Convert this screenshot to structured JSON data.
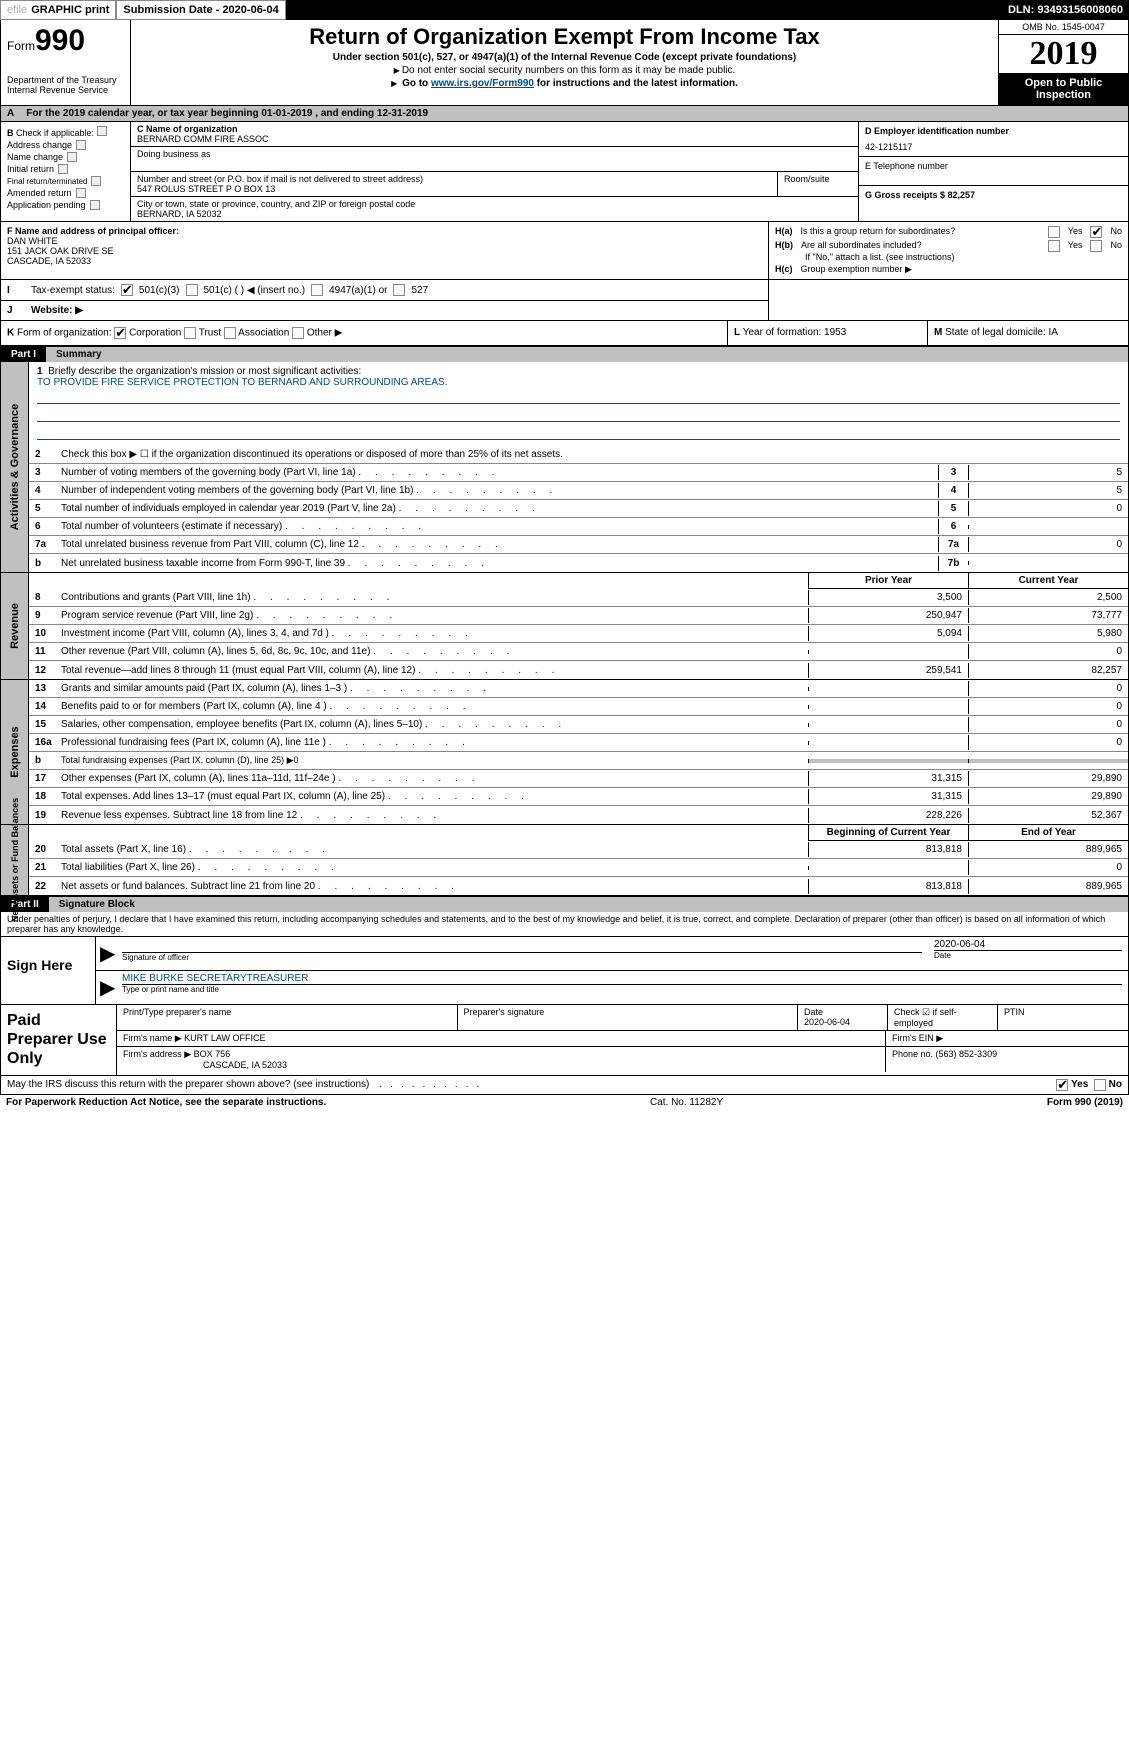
{
  "topbar": {
    "efile_prefix": "efile",
    "efile_bold": "GRAPHIC print",
    "submission_label": "Submission Date - 2020-06-04",
    "dln": "DLN: 93493156008060"
  },
  "header": {
    "form_prefix": "Form",
    "form_no": "990",
    "dept1": "Department of the Treasury",
    "dept2": "Internal Revenue Service",
    "title": "Return of Organization Exempt From Income Tax",
    "sub1": "Under section 501(c), 527, or 4947(a)(1) of the Internal Revenue Code (except private foundations)",
    "sub2a": "Do not enter social security numbers on this form as it may be made public.",
    "sub2b_pre": "Go to ",
    "sub2b_link": "www.irs.gov/Form990",
    "sub2b_post": " for instructions and the latest information.",
    "omb": "OMB No. 1545-0047",
    "year": "2019",
    "open": "Open to Public Inspection"
  },
  "row_a": {
    "label": "A",
    "text": "For the 2019 calendar year, or tax year beginning 01-01-2019     , and ending 12-31-2019"
  },
  "col_b": {
    "label": "B",
    "check_label": "Check if applicable:",
    "items": [
      "Address change",
      "Name change",
      "Initial return",
      "Final return/terminated",
      "Amended return",
      "Application pending"
    ]
  },
  "org": {
    "c_label": "C Name of organization",
    "name": "BERNARD COMM FIRE ASSOC",
    "dba_label": "Doing business as",
    "addr_label": "Number and street (or P.O. box if mail is not delivered to street address)",
    "addr": "547 ROLUS STREET P O BOX 13",
    "room_label": "Room/suite",
    "city_label": "City or town, state or province, country, and ZIP or foreign postal code",
    "city": "BERNARD, IA  52032"
  },
  "col_de": {
    "d_label": "D Employer identification number",
    "ein": "42-1215117",
    "e_label": "E Telephone number",
    "g_label": "G Gross receipts $ 82,257"
  },
  "f_block": {
    "f_label": "F  Name and address of principal officer:",
    "name": "DAN WHITE",
    "addr1": "151 JACK OAK DRIVE SE",
    "addr2": "CASCADE, IA  52033"
  },
  "h_block": {
    "ha_label": "H(a)",
    "ha_text": "Is this a group return for subordinates?",
    "hb_label": "H(b)",
    "hb_text": "Are all subordinates included?",
    "hb_note": "If \"No,\" attach a list. (see instructions)",
    "hc_label": "H(c)",
    "hc_text": "Group exemption number ▶",
    "yes": "Yes",
    "no": "No"
  },
  "i_row": {
    "label": "I",
    "text": "Tax-exempt status:",
    "opts": [
      "501(c)(3)",
      "501(c) (  ) ◀ (insert no.)",
      "4947(a)(1) or",
      "527"
    ]
  },
  "j_row": {
    "label": "J",
    "text": "Website: ▶"
  },
  "k_row": {
    "label": "K",
    "text": "Form of organization:",
    "opts": [
      "Corporation",
      "Trust",
      "Association",
      "Other ▶"
    ]
  },
  "l_row": {
    "label": "L",
    "text": "Year of formation: 1953"
  },
  "m_row": {
    "label": "M",
    "text": "State of legal domicile: IA"
  },
  "part1": {
    "label": "Part I",
    "title": "Summary"
  },
  "mission": {
    "line1_num": "1",
    "line1_txt": "Briefly describe the organization's mission or most significant activities:",
    "mission_text": "TO PROVIDE FIRE SERVICE PROTECTION TO BERNARD AND SURROUNDING AREAS."
  },
  "governance": {
    "side": "Activities & Governance",
    "lines": [
      {
        "n": "2",
        "t": "Check this box ▶ ☐  if the organization discontinued its operations or disposed of more than 25% of its net assets."
      },
      {
        "n": "3",
        "t": "Number of voting members of the governing body (Part VI, line 1a)",
        "cn": "3",
        "v": "5"
      },
      {
        "n": "4",
        "t": "Number of independent voting members of the governing body (Part VI, line 1b)",
        "cn": "4",
        "v": "5"
      },
      {
        "n": "5",
        "t": "Total number of individuals employed in calendar year 2019 (Part V, line 2a)",
        "cn": "5",
        "v": "0"
      },
      {
        "n": "6",
        "t": "Total number of volunteers (estimate if necessary)",
        "cn": "6",
        "v": ""
      },
      {
        "n": "7a",
        "t": "Total unrelated business revenue from Part VIII, column (C), line 12",
        "cn": "7a",
        "v": "0"
      },
      {
        "n": "b",
        "t": "Net unrelated business taxable income from Form 990-T, line 39",
        "cn": "7b",
        "v": ""
      }
    ]
  },
  "revenue": {
    "side": "Revenue",
    "hdr_prior": "Prior Year",
    "hdr_curr": "Current Year",
    "lines": [
      {
        "n": "8",
        "t": "Contributions and grants (Part VIII, line 1h)",
        "p": "3,500",
        "c": "2,500"
      },
      {
        "n": "9",
        "t": "Program service revenue (Part VIII, line 2g)",
        "p": "250,947",
        "c": "73,777"
      },
      {
        "n": "10",
        "t": "Investment income (Part VIII, column (A), lines 3, 4, and 7d )",
        "p": "5,094",
        "c": "5,980"
      },
      {
        "n": "11",
        "t": "Other revenue (Part VIII, column (A), lines 5, 6d, 8c, 9c, 10c, and 11e)",
        "p": "",
        "c": "0"
      },
      {
        "n": "12",
        "t": "Total revenue—add lines 8 through 11 (must equal Part VIII, column (A), line 12)",
        "p": "259,541",
        "c": "82,257"
      }
    ]
  },
  "expenses": {
    "side": "Expenses",
    "lines": [
      {
        "n": "13",
        "t": "Grants and similar amounts paid (Part IX, column (A), lines 1–3 )",
        "p": "",
        "c": "0"
      },
      {
        "n": "14",
        "t": "Benefits paid to or for members (Part IX, column (A), line 4 )",
        "p": "",
        "c": "0"
      },
      {
        "n": "15",
        "t": "Salaries, other compensation, employee benefits (Part IX, column (A), lines 5–10)",
        "p": "",
        "c": "0"
      },
      {
        "n": "16a",
        "t": "Professional fundraising fees (Part IX, column (A), line 11e )",
        "p": "",
        "c": "0"
      },
      {
        "n": "b",
        "t": "Total fundraising expenses (Part IX, column (D), line 25) ▶0",
        "p": null,
        "c": null,
        "grey": true
      },
      {
        "n": "17",
        "t": "Other expenses (Part IX, column (A), lines 11a–11d, 11f–24e )",
        "p": "31,315",
        "c": "29,890"
      },
      {
        "n": "18",
        "t": "Total expenses. Add lines 13–17 (must equal Part IX, column (A), line 25)",
        "p": "31,315",
        "c": "29,890"
      },
      {
        "n": "19",
        "t": "Revenue less expenses. Subtract line 18 from line 12",
        "p": "228,226",
        "c": "52,367"
      }
    ]
  },
  "netassets": {
    "side": "Net Assets or Fund Balances",
    "hdr_prior": "Beginning of Current Year",
    "hdr_curr": "End of Year",
    "lines": [
      {
        "n": "20",
        "t": "Total assets (Part X, line 16)",
        "p": "813,818",
        "c": "889,965"
      },
      {
        "n": "21",
        "t": "Total liabilities (Part X, line 26)",
        "p": "",
        "c": "0"
      },
      {
        "n": "22",
        "t": "Net assets or fund balances. Subtract line 21 from line 20",
        "p": "813,818",
        "c": "889,965"
      }
    ]
  },
  "part2": {
    "label": "Part II",
    "title": "Signature Block"
  },
  "perjury": "Under penalties of perjury, I declare that I have examined this return, including accompanying schedules and statements, and to the best of my knowledge and belief, it is true, correct, and complete. Declaration of preparer (other than officer) is based on all information of which preparer has any knowledge.",
  "sign": {
    "label": "Sign Here",
    "sig_officer": "Signature of officer",
    "date": "2020-06-04",
    "date_lbl": "Date",
    "name": "MIKE BURKE  SECRETARYTREASURER",
    "name_lbl": "Type or print name and title"
  },
  "paid": {
    "label": "Paid Preparer Use Only",
    "h1": "Print/Type preparer's name",
    "h2": "Preparer's signature",
    "h3": "Date",
    "h3v": "2020-06-04",
    "h4": "Check ☑ if self-employed",
    "h5": "PTIN",
    "firm_name_lbl": "Firm's name    ▶",
    "firm_name": "KURT LAW OFFICE",
    "firm_ein_lbl": "Firm's EIN ▶",
    "firm_addr_lbl": "Firm's address ▶",
    "firm_addr1": "BOX 756",
    "firm_addr2": "CASCADE, IA  52033",
    "phone_lbl": "Phone no. (563) 852-3309"
  },
  "discuss": {
    "text": "May the IRS discuss this return with the preparer shown above? (see instructions)",
    "yes": "Yes",
    "no": "No"
  },
  "footer": {
    "left": "For Paperwork Reduction Act Notice, see the separate instructions.",
    "mid": "Cat. No. 11282Y",
    "right": "Form 990 (2019)"
  }
}
